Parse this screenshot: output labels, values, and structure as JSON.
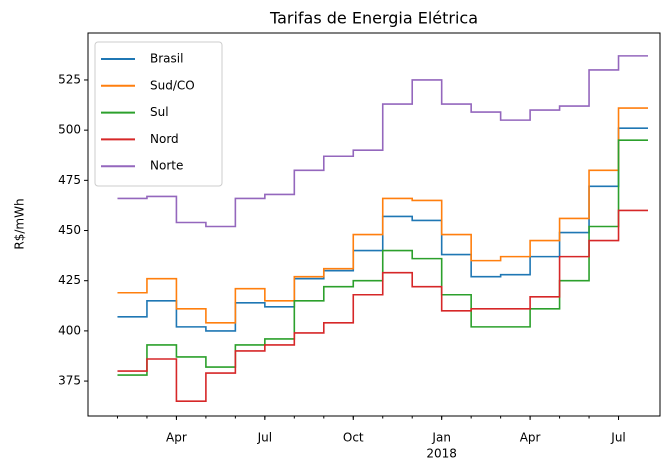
{
  "chart_data": {
    "type": "step",
    "title": "Tarifas de Energia Elétrica",
    "ylabel": "R$/mWh",
    "x": [
      "2017-02",
      "2017-03",
      "2017-04",
      "2017-05",
      "2017-06",
      "2017-07",
      "2017-08",
      "2017-09",
      "2017-10",
      "2017-11",
      "2017-12",
      "2018-01",
      "2018-02",
      "2018-03",
      "2018-04",
      "2018-05",
      "2018-06",
      "2018-07"
    ],
    "series": [
      {
        "name": "Brasil",
        "color": "#1f77b4",
        "values": [
          407,
          415,
          402,
          400,
          414,
          412,
          426,
          430,
          440,
          457,
          455,
          438,
          427,
          428,
          437,
          449,
          472,
          501
        ]
      },
      {
        "name": "Sud/CO",
        "color": "#ff7f0e",
        "values": [
          419,
          426,
          411,
          404,
          421,
          415,
          427,
          431,
          448,
          466,
          465,
          448,
          435,
          437,
          445,
          456,
          480,
          511
        ]
      },
      {
        "name": "Sul",
        "color": "#2ca02c",
        "values": [
          378,
          393,
          387,
          382,
          393,
          396,
          415,
          422,
          425,
          440,
          436,
          418,
          402,
          402,
          411,
          425,
          452,
          495
        ]
      },
      {
        "name": "Nord",
        "color": "#d62728",
        "values": [
          380,
          386,
          365,
          379,
          390,
          393,
          399,
          404,
          418,
          429,
          422,
          410,
          411,
          411,
          417,
          437,
          445,
          460
        ]
      },
      {
        "name": "Norte",
        "color": "#9467bd",
        "values": [
          466,
          467,
          454,
          452,
          466,
          468,
          480,
          487,
          490,
          513,
          525,
          513,
          509,
          505,
          510,
          512,
          530,
          537
        ]
      }
    ],
    "xlim": [
      "2017-01",
      "2018-08"
    ],
    "xticks": [
      {
        "value": "2017-04",
        "label": "Apr"
      },
      {
        "value": "2017-07",
        "label": "Jul"
      },
      {
        "value": "2017-10",
        "label": "Oct"
      },
      {
        "value": "2018-01",
        "label": "Jan"
      },
      {
        "value": "2018-04",
        "label": "Apr"
      },
      {
        "value": "2018-07",
        "label": "Jul"
      }
    ],
    "x_year_label": {
      "value": "2018-01",
      "label": "2018"
    },
    "ylim": [
      357.6,
      548.4
    ],
    "yticks": [
      375,
      400,
      425,
      450,
      475,
      500,
      525
    ],
    "legend": "upper left",
    "grid": false
  }
}
